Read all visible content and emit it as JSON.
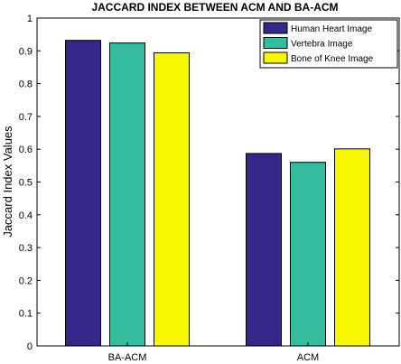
{
  "chart_data": {
    "type": "bar",
    "title": "JACCARD INDEX BETWEEN ACM AND BA-ACM",
    "xlabel": "",
    "ylabel": "Jaccard Index Values",
    "categories": [
      "BA-ACM",
      "ACM"
    ],
    "series": [
      {
        "name": "Human Heart Image",
        "color": "#33288a",
        "values": [
          0.932,
          0.587
        ]
      },
      {
        "name": "Vertebra Image",
        "color": "#35bb9e",
        "values": [
          0.924,
          0.56
        ]
      },
      {
        "name": "Bone of Knee Image",
        "color": "#f7f700",
        "values": [
          0.894,
          0.601
        ]
      }
    ],
    "ylim": [
      0,
      1
    ],
    "yticks": [
      "0",
      "0.1",
      "0.2",
      "0.3",
      "0.4",
      "0.5",
      "0.6",
      "0.7",
      "0.8",
      "0.9",
      "1"
    ],
    "grid": false,
    "legend_position": "top-right"
  }
}
